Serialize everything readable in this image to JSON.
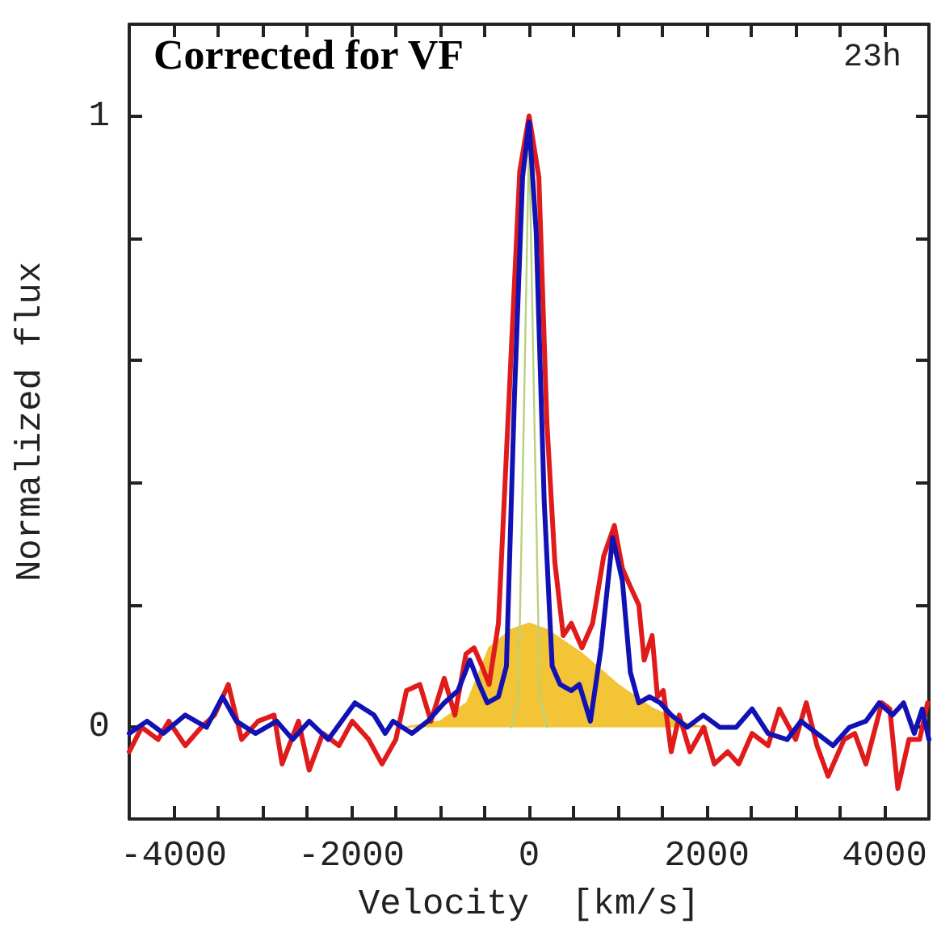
{
  "chart_data": {
    "type": "line",
    "title": "Corrected for VF",
    "annotations": [
      "23h"
    ],
    "xlabel": "Velocity  [km/s]",
    "ylabel": "Normalized flux",
    "xlim": [
      -4500,
      4500
    ],
    "ylim": [
      -0.15,
      1.15
    ],
    "xticks": [
      {
        "value": -4500,
        "label": null
      },
      -4000,
      {
        "value": -3500,
        "label": null
      },
      {
        "value": -3000,
        "label": null
      },
      {
        "value": -2500,
        "label": null
      },
      -2000,
      {
        "value": -1500,
        "label": null
      },
      {
        "value": -1000,
        "label": null
      },
      {
        "value": -500,
        "label": null
      },
      0,
      {
        "value": 500,
        "label": null
      },
      {
        "value": 1000,
        "label": null
      },
      {
        "value": 1500,
        "label": null
      },
      2000,
      {
        "value": 2500,
        "label": null
      },
      {
        "value": 3000,
        "label": null
      },
      {
        "value": 3500,
        "label": null
      },
      4000,
      {
        "value": 4500,
        "label": null
      }
    ],
    "yticks": [
      0,
      {
        "value": 0.2,
        "label": null
      },
      {
        "value": 0.4,
        "label": null
      },
      {
        "value": 0.6,
        "label": null
      },
      {
        "value": 0.8,
        "label": null
      },
      1
    ],
    "marker": "none",
    "line_style": "solid",
    "series": [
      {
        "type": "area",
        "color": "#f2c436",
        "x": [
          -1400,
          -1000,
          -700,
          -450,
          -200,
          0,
          200,
          600,
          1000,
          1400,
          1800,
          2000
        ],
        "values": [
          0,
          0.01,
          0.04,
          0.13,
          0.16,
          0.17,
          0.16,
          0.12,
          0.07,
          0.03,
          0.005,
          0
        ]
      },
      {
        "color": "#b8d27c",
        "x": [
          -200,
          -120,
          -60,
          0,
          60,
          120,
          200
        ],
        "values": [
          0,
          0.05,
          0.5,
          0.97,
          0.5,
          0.05,
          0
        ]
      },
      {
        "color": "#e01b1b",
        "x": [
          -4500,
          -4360,
          -4175,
          -4055,
          -3870,
          -3690,
          -3540,
          -3385,
          -3235,
          -3050,
          -2870,
          -2780,
          -2595,
          -2475,
          -2320,
          -2140,
          -1990,
          -1805,
          -1655,
          -1500,
          -1380,
          -1230,
          -1105,
          -955,
          -835,
          -710,
          -620,
          -530,
          -450,
          -345,
          -225,
          -105,
          0,
          110,
          200,
          290,
          385,
          475,
          595,
          715,
          840,
          960,
          1050,
          1140,
          1235,
          1295,
          1385,
          1445,
          1510,
          1600,
          1690,
          1810,
          1965,
          2085,
          2235,
          2360,
          2510,
          2690,
          2815,
          3000,
          3120,
          3240,
          3365,
          3545,
          3665,
          3790,
          3970,
          4060,
          4150,
          4275,
          4395,
          4485
        ],
        "values": [
          -0.04,
          0,
          -0.02,
          0.01,
          -0.03,
          0,
          0.02,
          0.07,
          -0.02,
          0.01,
          0.02,
          -0.06,
          0.01,
          -0.07,
          -0.01,
          -0.03,
          0.01,
          -0.02,
          -0.06,
          -0.02,
          0.06,
          0.07,
          0.01,
          0.08,
          0.02,
          0.12,
          0.13,
          0.1,
          0.07,
          0.17,
          0.54,
          0.91,
          1.0,
          0.9,
          0.5,
          0.27,
          0.15,
          0.17,
          0.13,
          0.17,
          0.28,
          0.33,
          0.26,
          0.23,
          0.2,
          0.11,
          0.15,
          0.05,
          0.06,
          -0.04,
          0.02,
          -0.04,
          0,
          -0.06,
          -0.04,
          -0.06,
          -0.01,
          -0.03,
          0.03,
          -0.02,
          0.04,
          -0.03,
          -0.08,
          -0.02,
          -0.01,
          -0.06,
          0.04,
          0.03,
          -0.1,
          -0.02,
          -0.02,
          0.04
        ]
      },
      {
        "color": "#1212b4",
        "x": [
          -4500,
          -4300,
          -4115,
          -3870,
          -3630,
          -3450,
          -3295,
          -3080,
          -2840,
          -2660,
          -2475,
          -2260,
          -1960,
          -1745,
          -1620,
          -1530,
          -1320,
          -1140,
          -955,
          -800,
          -665,
          -560,
          -470,
          -345,
          -255,
          -165,
          -73,
          0,
          80,
          170,
          260,
          350,
          475,
          565,
          690,
          810,
          940,
          1050,
          1140,
          1235,
          1355,
          1475,
          1600,
          1780,
          1960,
          2145,
          2330,
          2510,
          2690,
          2905,
          3060,
          3240,
          3420,
          3605,
          3790,
          3940,
          4090,
          4215,
          4335,
          4425,
          4500
        ],
        "values": [
          -0.01,
          0.01,
          -0.01,
          0.02,
          0,
          0.05,
          0.01,
          -0.01,
          0.01,
          -0.02,
          0.01,
          -0.02,
          0.04,
          0.02,
          -0.01,
          0.01,
          -0.01,
          0.01,
          0.04,
          0.06,
          0.11,
          0.07,
          0.04,
          0.05,
          0.1,
          0.54,
          0.9,
          0.99,
          0.81,
          0.37,
          0.1,
          0.07,
          0.06,
          0.07,
          0.01,
          0.13,
          0.31,
          0.24,
          0.09,
          0.04,
          0.05,
          0.04,
          0.02,
          0,
          0.02,
          0,
          0,
          0.03,
          -0.01,
          -0.02,
          0.01,
          -0.01,
          -0.03,
          0,
          0.01,
          0.04,
          0.02,
          0.04,
          -0.01,
          0.03,
          -0.02
        ]
      }
    ]
  }
}
